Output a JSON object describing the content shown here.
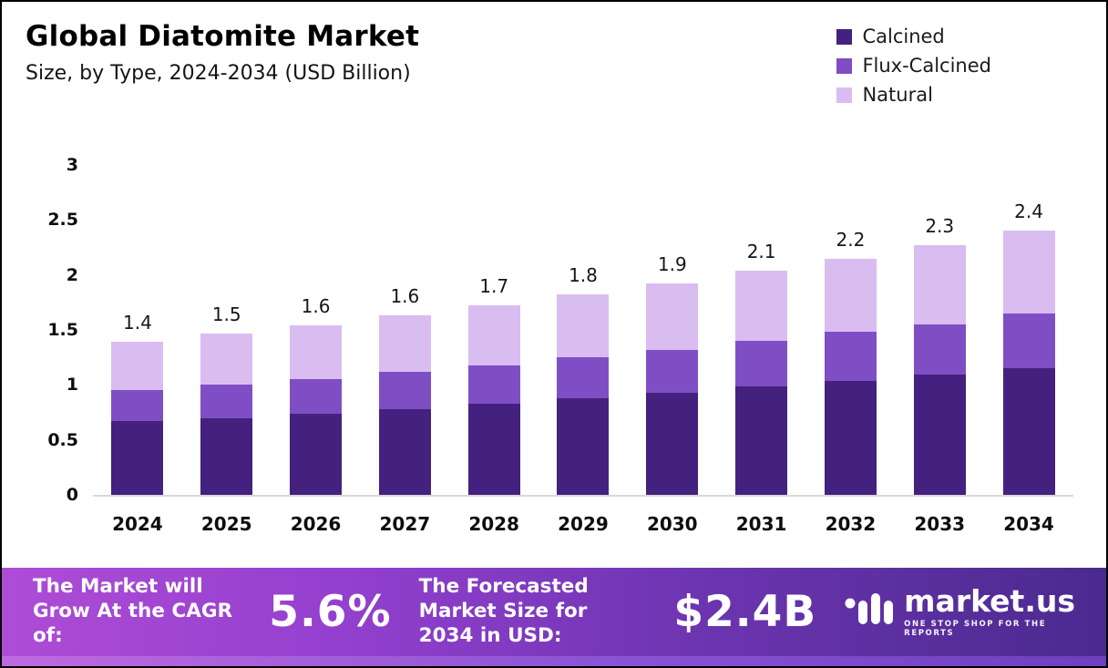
{
  "header": {
    "title": "Global Diatomite Market",
    "subtitle": "Size, by Type, 2024-2034 (USD Billion)"
  },
  "chart_data": {
    "type": "bar",
    "stacked": true,
    "title": "Global Diatomite Market Size, by Type, 2024-2034 (USD Billion)",
    "categories": [
      "2024",
      "2025",
      "2026",
      "2027",
      "2028",
      "2029",
      "2030",
      "2031",
      "2032",
      "2033",
      "2034"
    ],
    "series": [
      {
        "name": "Calcined",
        "color": "#44217e",
        "values": [
          0.67,
          0.7,
          0.74,
          0.78,
          0.83,
          0.88,
          0.93,
          0.99,
          1.04,
          1.09,
          1.15
        ]
      },
      {
        "name": "Flux-Calcined",
        "color": "#7f4ec4",
        "values": [
          0.28,
          0.3,
          0.31,
          0.34,
          0.35,
          0.37,
          0.39,
          0.41,
          0.44,
          0.46,
          0.5
        ]
      },
      {
        "name": "Natural",
        "color": "#d9bdf0",
        "values": [
          0.44,
          0.47,
          0.49,
          0.51,
          0.54,
          0.57,
          0.6,
          0.64,
          0.67,
          0.72,
          0.75
        ]
      }
    ],
    "totals": [
      1.4,
      1.5,
      1.6,
      1.6,
      1.7,
      1.8,
      1.9,
      2.1,
      2.2,
      2.3,
      2.4
    ],
    "xlabel": "",
    "ylabel": "",
    "ylim": [
      0,
      3
    ],
    "yticks": [
      0,
      0.5,
      1,
      1.5,
      2,
      2.5,
      3
    ],
    "grid": false,
    "legend_position": "top-right"
  },
  "footer": {
    "cagr_label": "The Market will Grow At the CAGR of:",
    "cagr_value": "5.6%",
    "forecast_label": "The Forecasted Market Size for 2034 in USD:",
    "forecast_value": "$2.4B",
    "brand": "market.us",
    "brand_tagline": "ONE STOP SHOP FOR THE REPORTS"
  },
  "colors": {
    "banner_left": "#ae4cd6",
    "banner_right": "#4a2a8f",
    "baseline": "#d8d8d8"
  }
}
